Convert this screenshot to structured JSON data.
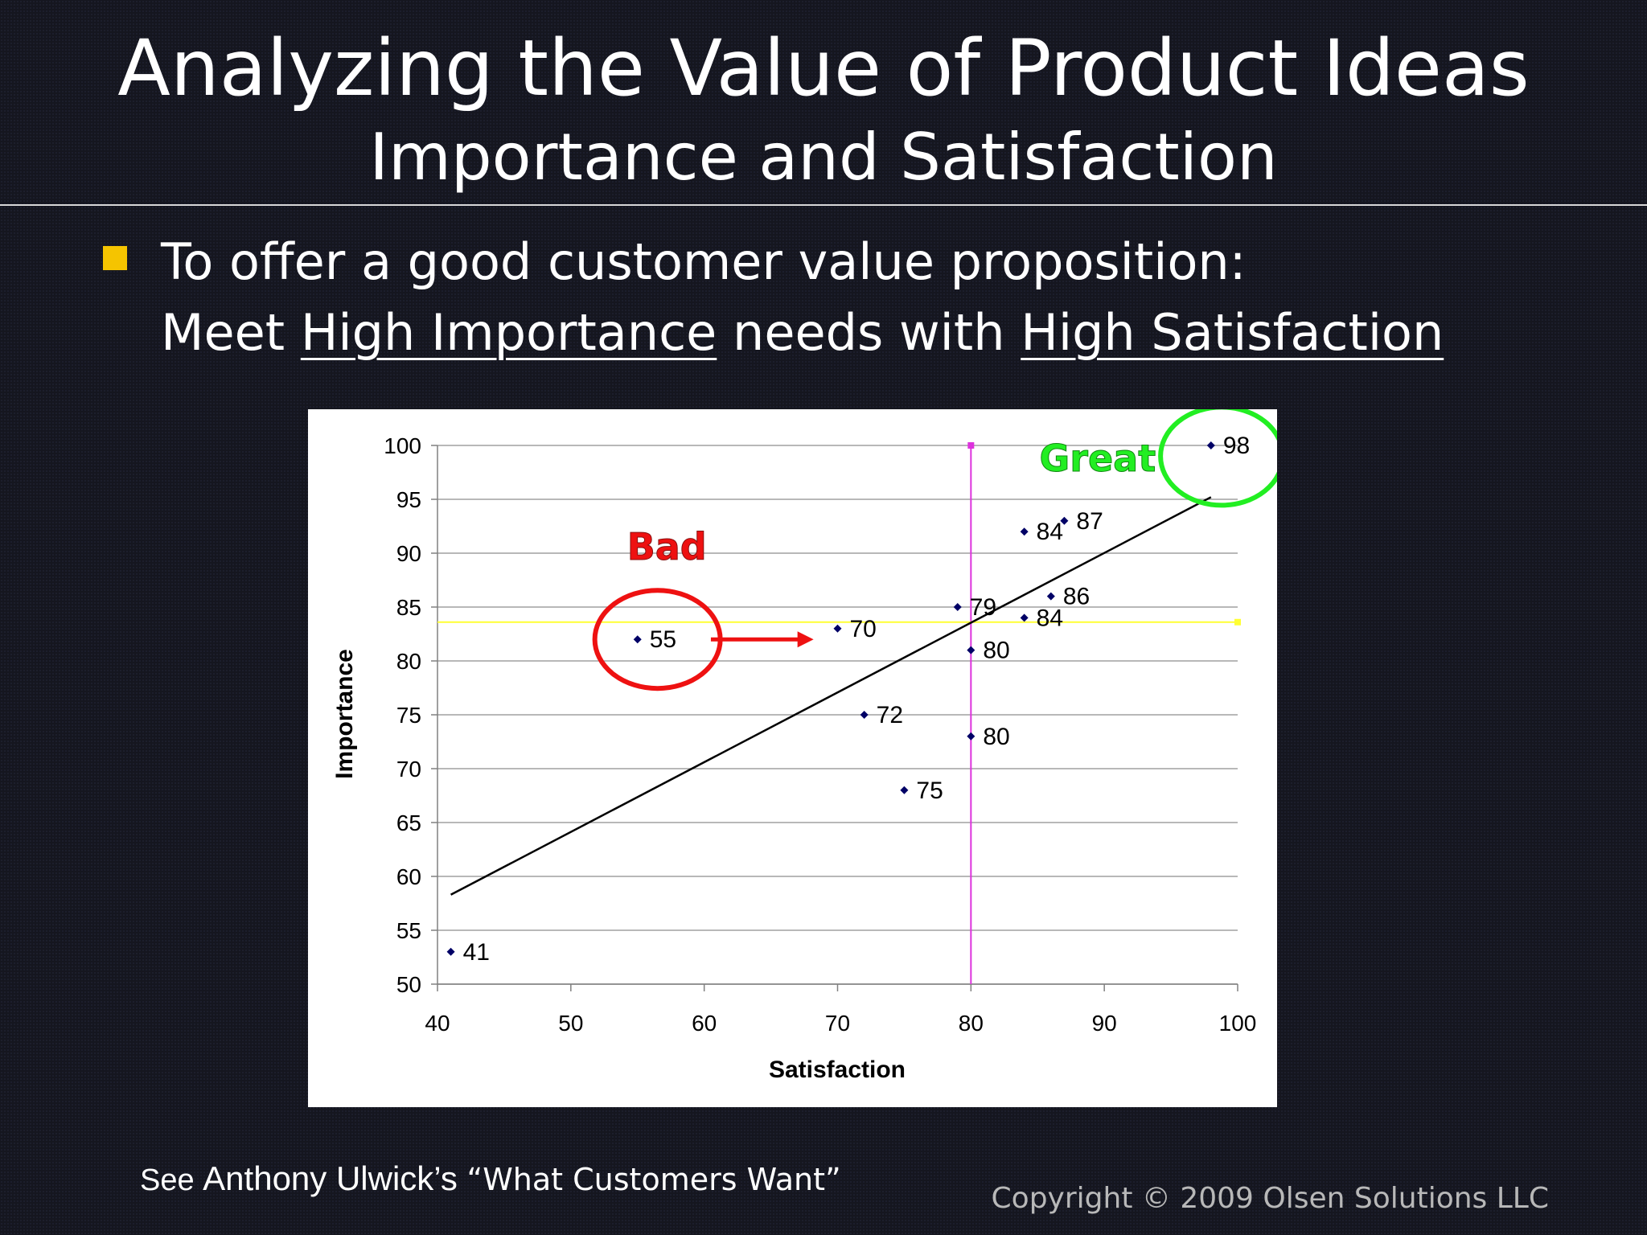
{
  "slide": {
    "title": "Analyzing the Value of Product Ideas",
    "subtitle": "Importance and Satisfaction",
    "bullet_line1": "To offer a good customer value proposition:",
    "bullet_line2_a": "Meet ",
    "bullet_line2_b": "High Importance",
    "bullet_line2_c": " needs with ",
    "bullet_line2_d": "High Satisfaction",
    "footnote_see": "See ",
    "footnote_author": "Anthony Ulwick’s ",
    "footnote_title": "“What Customers Want”",
    "copyright": "Copyright © 2009 Olsen Solutions LLC",
    "bullet_color": "#f5c400"
  },
  "chart_data": {
    "type": "scatter",
    "xlabel": "Satisfaction",
    "ylabel": "Importance",
    "xlim": [
      40,
      100
    ],
    "ylim": [
      50,
      100
    ],
    "xticks": [
      40,
      50,
      60,
      70,
      80,
      90,
      100
    ],
    "yticks": [
      50,
      55,
      60,
      65,
      70,
      75,
      80,
      85,
      90,
      95,
      100
    ],
    "grid": "horizontal",
    "points": [
      {
        "x": 41,
        "y": 53,
        "label": "41"
      },
      {
        "x": 55,
        "y": 82,
        "label": "55"
      },
      {
        "x": 70,
        "y": 83,
        "label": "70"
      },
      {
        "x": 72,
        "y": 75,
        "label": "72"
      },
      {
        "x": 75,
        "y": 68,
        "label": "75"
      },
      {
        "x": 79,
        "y": 85,
        "label": "79"
      },
      {
        "x": 80,
        "y": 81,
        "label": "80"
      },
      {
        "x": 80,
        "y": 73,
        "label": "80"
      },
      {
        "x": 84,
        "y": 92,
        "label": "84"
      },
      {
        "x": 84,
        "y": 84,
        "label": "84"
      },
      {
        "x": 86,
        "y": 86,
        "label": "86"
      },
      {
        "x": 87,
        "y": 93,
        "label": "87"
      },
      {
        "x": 98,
        "y": 100,
        "label": "98"
      }
    ],
    "trendline": {
      "x": [
        41,
        98
      ],
      "y": [
        58.3,
        95.2
      ]
    },
    "vertical_reference_x": 80,
    "horizontal_reference_y": 83.6,
    "annotations": {
      "bad_label": "Bad",
      "great_label": "Great",
      "bad_circle_around": {
        "x": 56.5,
        "y": 82
      },
      "great_circle_around": {
        "x": 98.8,
        "y": 99
      },
      "arrow": {
        "x_from": 60.5,
        "x_to": 68.2,
        "y": 82
      }
    },
    "colors": {
      "points": "#000066",
      "trendline": "#000000",
      "vertical_ref": "#dd33dd",
      "horizontal_ref": "#ffff33",
      "bad": "#ee1111",
      "great": "#22ee22",
      "grid": "#a0a0a0"
    }
  }
}
